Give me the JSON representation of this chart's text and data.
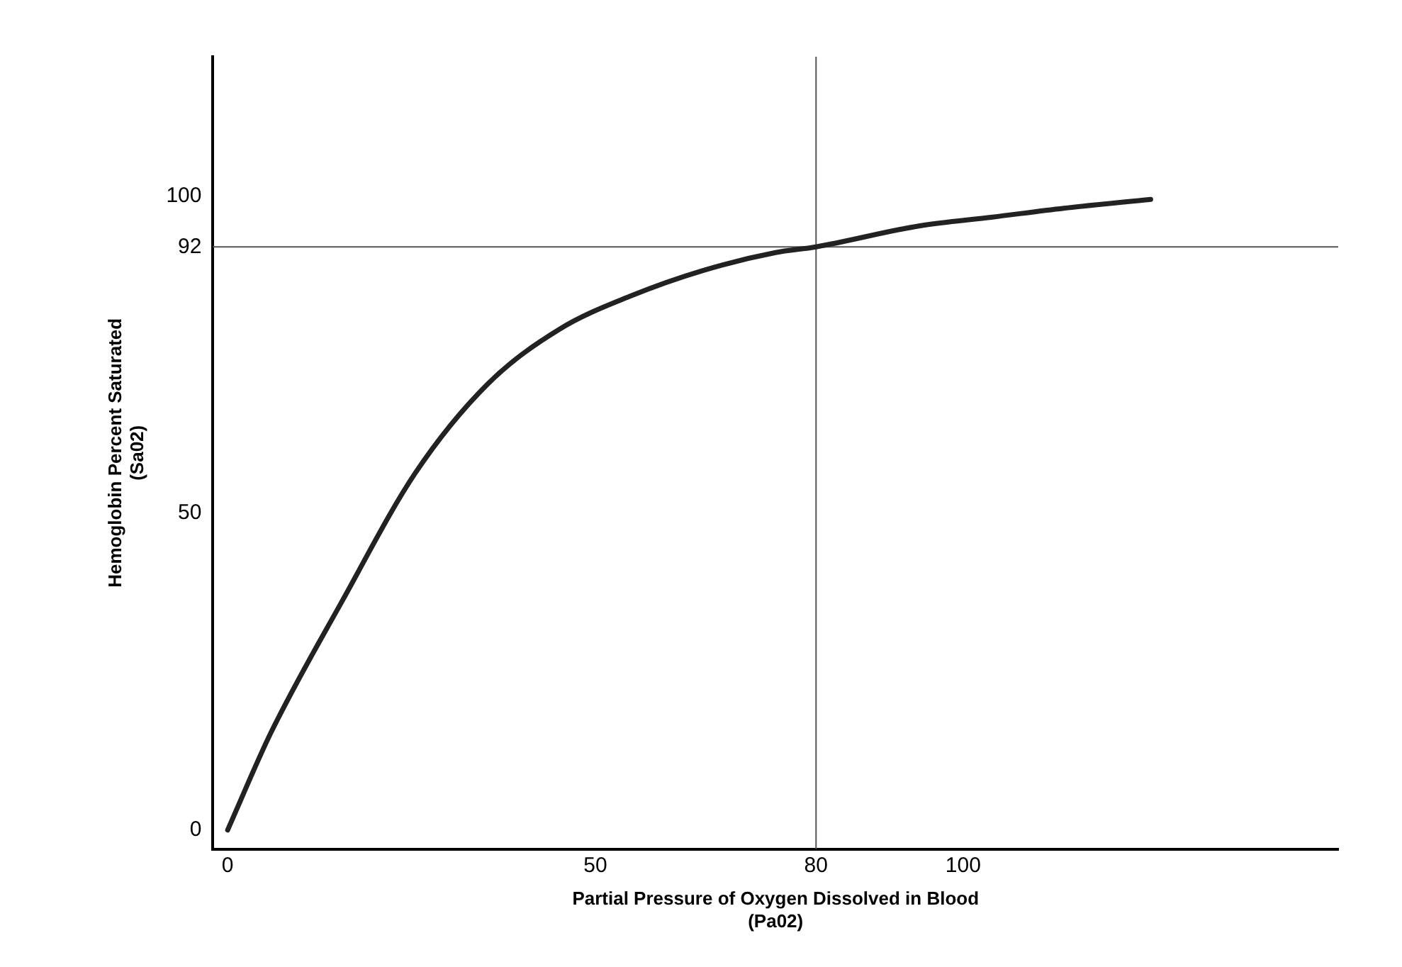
{
  "chart_data": {
    "type": "line",
    "xlabel": "Partial Pressure of Oxygen Dissolved in Blood\n(Pa02)",
    "ylabel": "Hemoglobin Percent Saturated\n(Sa02)",
    "x": [
      0,
      5.9,
      15.7,
      25.5,
      35.3,
      45.1,
      54.9,
      64.7,
      74.5,
      80,
      94,
      104,
      113.7,
      125.5
    ],
    "series": [
      {
        "color": "#222222",
        "values": [
          0,
          15.4,
          36.4,
          56.3,
          70.3,
          79,
          84.3,
          88.3,
          91.1,
          92,
          95.3,
          96.7,
          98.1,
          99.5
        ]
      }
    ],
    "xlim": [
      -2,
      151
    ],
    "ylim": [
      -3,
      122
    ],
    "xticks": [
      0,
      50,
      80,
      100
    ],
    "yticks": [
      0,
      50,
      92,
      100
    ],
    "ref_lines": [
      {
        "axis": "x",
        "value": 80,
        "color": "#555555"
      },
      {
        "axis": "y",
        "value": 92,
        "color": "#555555"
      }
    ],
    "grid": false,
    "legend": false,
    "marker": "none",
    "line_style": "solid"
  }
}
